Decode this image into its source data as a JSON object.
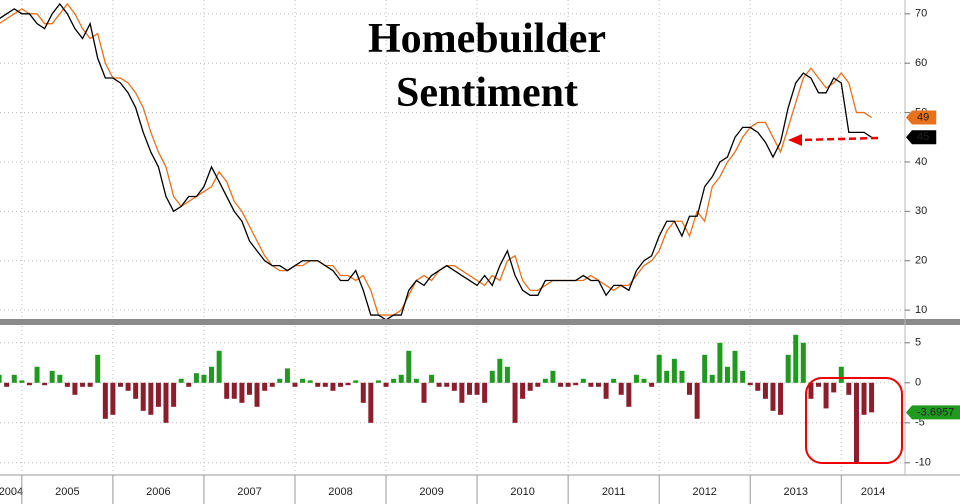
{
  "chart_data": {
    "type": "line",
    "title": "Homebuilder Sentiment",
    "x": [
      2004.75,
      2004.833,
      2004.917,
      2005,
      2005.083,
      2005.167,
      2005.25,
      2005.333,
      2005.417,
      2005.5,
      2005.583,
      2005.667,
      2005.75,
      2005.833,
      2005.917,
      2006,
      2006.083,
      2006.167,
      2006.25,
      2006.333,
      2006.417,
      2006.5,
      2006.583,
      2006.667,
      2006.75,
      2006.833,
      2006.917,
      2007,
      2007.083,
      2007.167,
      2007.25,
      2007.333,
      2007.417,
      2007.5,
      2007.583,
      2007.667,
      2007.75,
      2007.833,
      2007.917,
      2008,
      2008.083,
      2008.167,
      2008.25,
      2008.333,
      2008.417,
      2008.5,
      2008.583,
      2008.667,
      2008.75,
      2008.833,
      2008.917,
      2009,
      2009.083,
      2009.167,
      2009.25,
      2009.333,
      2009.417,
      2009.5,
      2009.583,
      2009.667,
      2009.75,
      2009.833,
      2009.917,
      2010,
      2010.083,
      2010.167,
      2010.25,
      2010.333,
      2010.417,
      2010.5,
      2010.583,
      2010.667,
      2010.75,
      2010.833,
      2010.917,
      2011,
      2011.083,
      2011.167,
      2011.25,
      2011.333,
      2011.417,
      2011.5,
      2011.583,
      2011.667,
      2011.75,
      2011.833,
      2011.917,
      2012,
      2012.083,
      2012.167,
      2012.25,
      2012.333,
      2012.417,
      2012.5,
      2012.583,
      2012.667,
      2012.75,
      2012.833,
      2012.917,
      2013,
      2013.083,
      2013.167,
      2013.25,
      2013.333,
      2013.417,
      2013.5,
      2013.583,
      2013.667,
      2013.75,
      2013.833,
      2013.917,
      2014,
      2014.083,
      2014.167,
      2014.25,
      2014.333
    ],
    "series": [
      {
        "color": "#e8711c",
        "values": [
          68,
          69,
          70,
          71,
          70,
          70,
          68,
          68,
          70,
          72,
          70,
          67,
          65,
          66,
          60,
          57,
          57,
          56,
          54,
          51,
          46,
          42,
          39,
          33,
          31,
          32,
          33,
          34,
          35,
          38,
          36,
          32,
          30,
          27,
          24,
          21,
          19,
          18,
          18,
          19,
          19,
          20,
          20,
          19,
          19,
          17,
          17,
          16,
          17,
          14,
          9,
          9,
          9,
          10,
          13,
          16,
          17,
          16,
          18,
          19,
          19,
          18,
          17,
          16,
          15,
          17,
          16,
          20,
          21,
          16,
          14,
          14,
          15,
          16,
          16,
          16,
          16,
          16,
          17,
          16,
          15,
          14,
          15,
          15,
          17,
          19,
          20,
          22,
          26,
          28,
          28,
          25,
          30,
          28,
          35,
          37,
          40,
          42,
          45,
          47,
          48,
          48,
          45,
          42,
          47,
          52,
          57,
          59,
          57,
          55,
          56,
          58,
          56,
          50,
          50,
          49
        ]
      },
      {
        "color": "#000000",
        "values": [
          69,
          70,
          71,
          70,
          70,
          68,
          67,
          70,
          72,
          70,
          67,
          65,
          68,
          61,
          57,
          57,
          56,
          54,
          51,
          46,
          42,
          39,
          33,
          30,
          31,
          33,
          33,
          35,
          39,
          36,
          33,
          30,
          28,
          24,
          22,
          20,
          19,
          19,
          18,
          19,
          20,
          20,
          20,
          19,
          18,
          16,
          16,
          18,
          14,
          9,
          9,
          8,
          9,
          9,
          14,
          16,
          15,
          17,
          18,
          19,
          18,
          17,
          16,
          15,
          17,
          15,
          19,
          22,
          17,
          14,
          13,
          13,
          16,
          16,
          16,
          16,
          16,
          17,
          16,
          16,
          13,
          15,
          15,
          14,
          18,
          20,
          21,
          25,
          28,
          28,
          25,
          29,
          29,
          35,
          37,
          40,
          41,
          45,
          47,
          47,
          46,
          44,
          41,
          44,
          51,
          56,
          58,
          57,
          54,
          54,
          57,
          56,
          46,
          46,
          46,
          45
        ]
      },
      {
        "type": "bar",
        "axis": "y2",
        "positive_color": "#1f9a1f",
        "negative_color": "#8c1d2c",
        "values": [
          1,
          -0.5,
          1,
          0.3,
          -0.3,
          2,
          -0.3,
          1.5,
          1,
          -0.5,
          -1.5,
          -0.5,
          -0.5,
          3.5,
          -4.5,
          -4,
          -0.5,
          -1,
          -2,
          -3.5,
          -4,
          -3,
          -5,
          -3,
          0.5,
          -0.5,
          1.2,
          1,
          2,
          4,
          -2,
          -2,
          -2.5,
          -1.5,
          -3,
          -1,
          -0.5,
          0.5,
          1.8,
          -0.5,
          0.5,
          0.3,
          -0.5,
          -0.5,
          -1,
          -0.5,
          -0.3,
          0.3,
          -2.5,
          -5,
          0.3,
          -0.5,
          0.5,
          1,
          4,
          0.5,
          -2.5,
          1,
          -0.5,
          -0.5,
          -1,
          -2.5,
          -1.5,
          -1.5,
          -2.5,
          1.5,
          3,
          2,
          -5,
          -2,
          -1,
          -0.5,
          0.5,
          1.5,
          -0.5,
          -0.5,
          -0.3,
          0.5,
          -0.5,
          -0.5,
          -2,
          0.5,
          -1.5,
          -3,
          1,
          0.5,
          -0.5,
          3.5,
          1.5,
          3,
          1.5,
          -1.5,
          -4.5,
          3.5,
          1,
          5,
          2,
          4,
          1.5,
          -0.3,
          -1,
          -2,
          -3.5,
          -4,
          3.5,
          6,
          5,
          -2,
          -0.5,
          -3.2,
          -1.2,
          2,
          -1.5,
          -10,
          -4,
          -3.6957
        ]
      }
    ],
    "xlim": [
      2004.76,
      2014.7
    ],
    "xticks": [
      2004,
      2005,
      2006,
      2007,
      2008,
      2009,
      2010,
      2011,
      2012,
      2013,
      2014
    ],
    "ylim": [
      8.4,
      72.8
    ],
    "yticks": [
      10,
      20,
      30,
      40,
      50,
      60,
      70
    ],
    "y2lim": [
      -11.4,
      7.1
    ],
    "y2ticks": [
      5,
      0,
      -5,
      -10
    ],
    "grid": true
  }
}
